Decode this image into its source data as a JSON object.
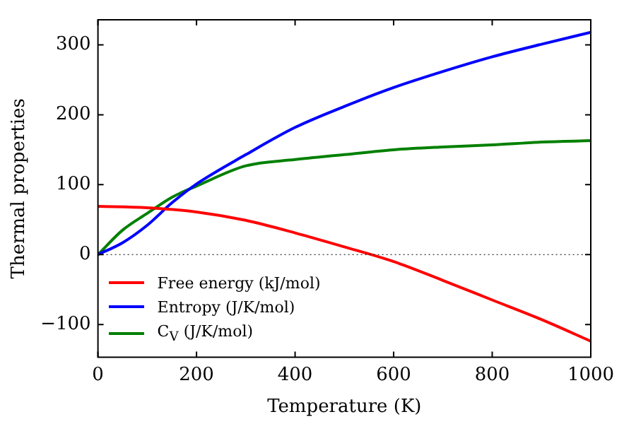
{
  "chart_data": {
    "type": "line",
    "xlabel": "Temperature (K)",
    "ylabel": "Thermal properties",
    "xlim": [
      0,
      1000
    ],
    "xticks": [
      0,
      200,
      400,
      600,
      800,
      1000
    ],
    "ylim": [
      -147,
      336
    ],
    "yticks": [
      -100,
      0,
      100,
      200,
      300
    ],
    "grid": false,
    "legend": "bottom left",
    "marker": "none",
    "line_style": "solid",
    "ref_lines": [
      {
        "axis": "y",
        "value": 0,
        "color": "#000000",
        "line_style": "dotted"
      }
    ],
    "series": [
      {
        "name": "Free energy (kJ/mol)",
        "color": "#ff0000",
        "x": [
          0,
          100,
          200,
          300,
          400,
          500,
          600,
          700,
          800,
          900,
          1000
        ],
        "values": [
          69,
          67,
          61,
          49,
          31,
          11,
          -10,
          -37,
          -65,
          -93,
          -124
        ]
      },
      {
        "name": "Entropy (J/K/mol)",
        "color": "#0000ff",
        "x": [
          0,
          50,
          100,
          150,
          200,
          300,
          400,
          500,
          600,
          700,
          800,
          900,
          1000
        ],
        "values": [
          0,
          17,
          42,
          74,
          101,
          143,
          182,
          212,
          239,
          262,
          283,
          301,
          318
        ]
      },
      {
        "name": "C$_{V}$ (J/K/mol)",
        "color": "#008000",
        "x": [
          0,
          50,
          100,
          150,
          200,
          300,
          400,
          500,
          600,
          700,
          800,
          900,
          1000
        ],
        "values": [
          0,
          35,
          59,
          82,
          98,
          127,
          136,
          143,
          150,
          154,
          157,
          161,
          163
        ]
      }
    ]
  }
}
